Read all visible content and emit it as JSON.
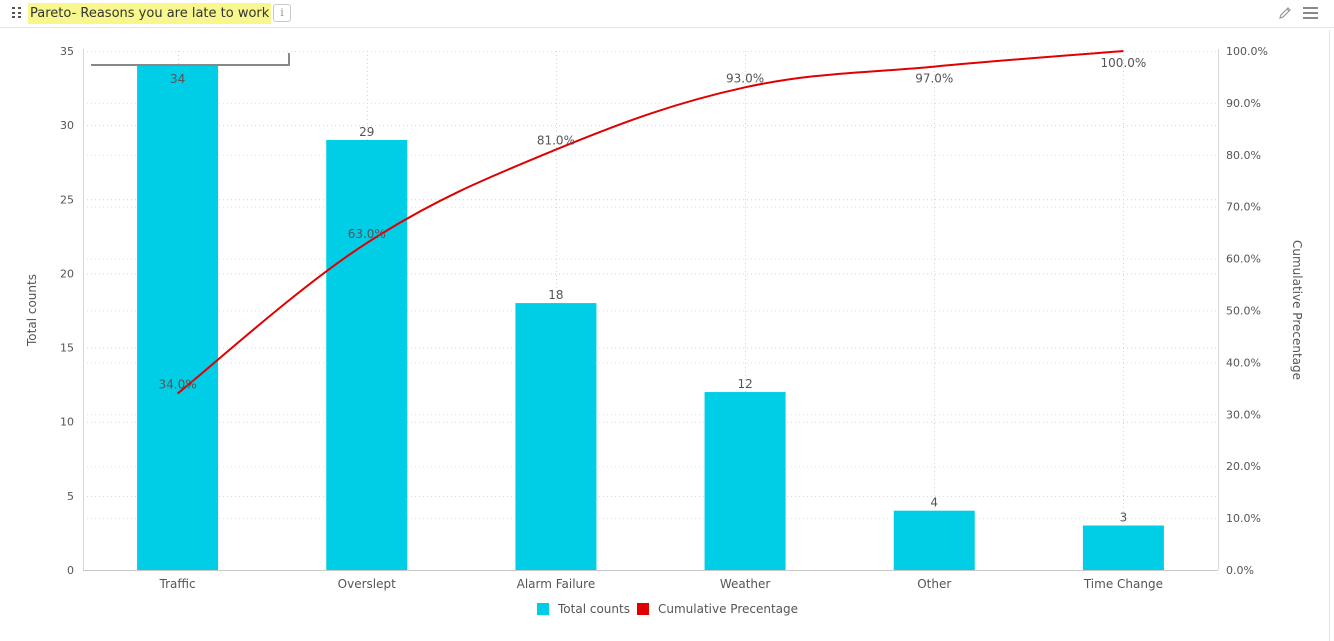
{
  "header": {
    "title": "Pareto- Reasons you are late to work",
    "info_glyph": "i",
    "icons": [
      "drag-handle-icon",
      "info-icon",
      "pencil-icon",
      "hamburger-menu-icon"
    ]
  },
  "chart_data": {
    "type": "bar",
    "title": "Pareto- Reasons you are late to work",
    "categories": [
      "Traffic",
      "Overslept",
      "Alarm Failure",
      "Weather",
      "Other",
      "Time Change"
    ],
    "series": [
      {
        "name": "Total counts",
        "type": "bar",
        "axis": "left",
        "color": "#00cde6",
        "values": [
          34,
          29,
          18,
          12,
          4,
          3
        ],
        "labels": [
          "34",
          "29",
          "18",
          "12",
          "4",
          "3"
        ]
      },
      {
        "name": "Cumulative Precentage",
        "type": "line",
        "axis": "right",
        "color": "#e00000",
        "values": [
          34.0,
          63.0,
          81.0,
          93.0,
          97.0,
          100.0
        ],
        "labels": [
          "34.0%",
          "63.0%",
          "81.0%",
          "93.0%",
          "97.0%",
          "100.0%"
        ]
      }
    ],
    "ylabel": "Total counts",
    "y2label": "Cumulative Precentage",
    "ylim": [
      0,
      35
    ],
    "y2lim": [
      0,
      100
    ],
    "yticks": [
      "0",
      "5",
      "10",
      "15",
      "20",
      "25",
      "30",
      "35"
    ],
    "y2ticks": [
      "0.0%",
      "10.0%",
      "20.0%",
      "30.0%",
      "40.0%",
      "50.0%",
      "60.0%",
      "70.0%",
      "80.0%",
      "90.0%",
      "100.0%"
    ],
    "grid": true,
    "legend": "bottom-center"
  }
}
